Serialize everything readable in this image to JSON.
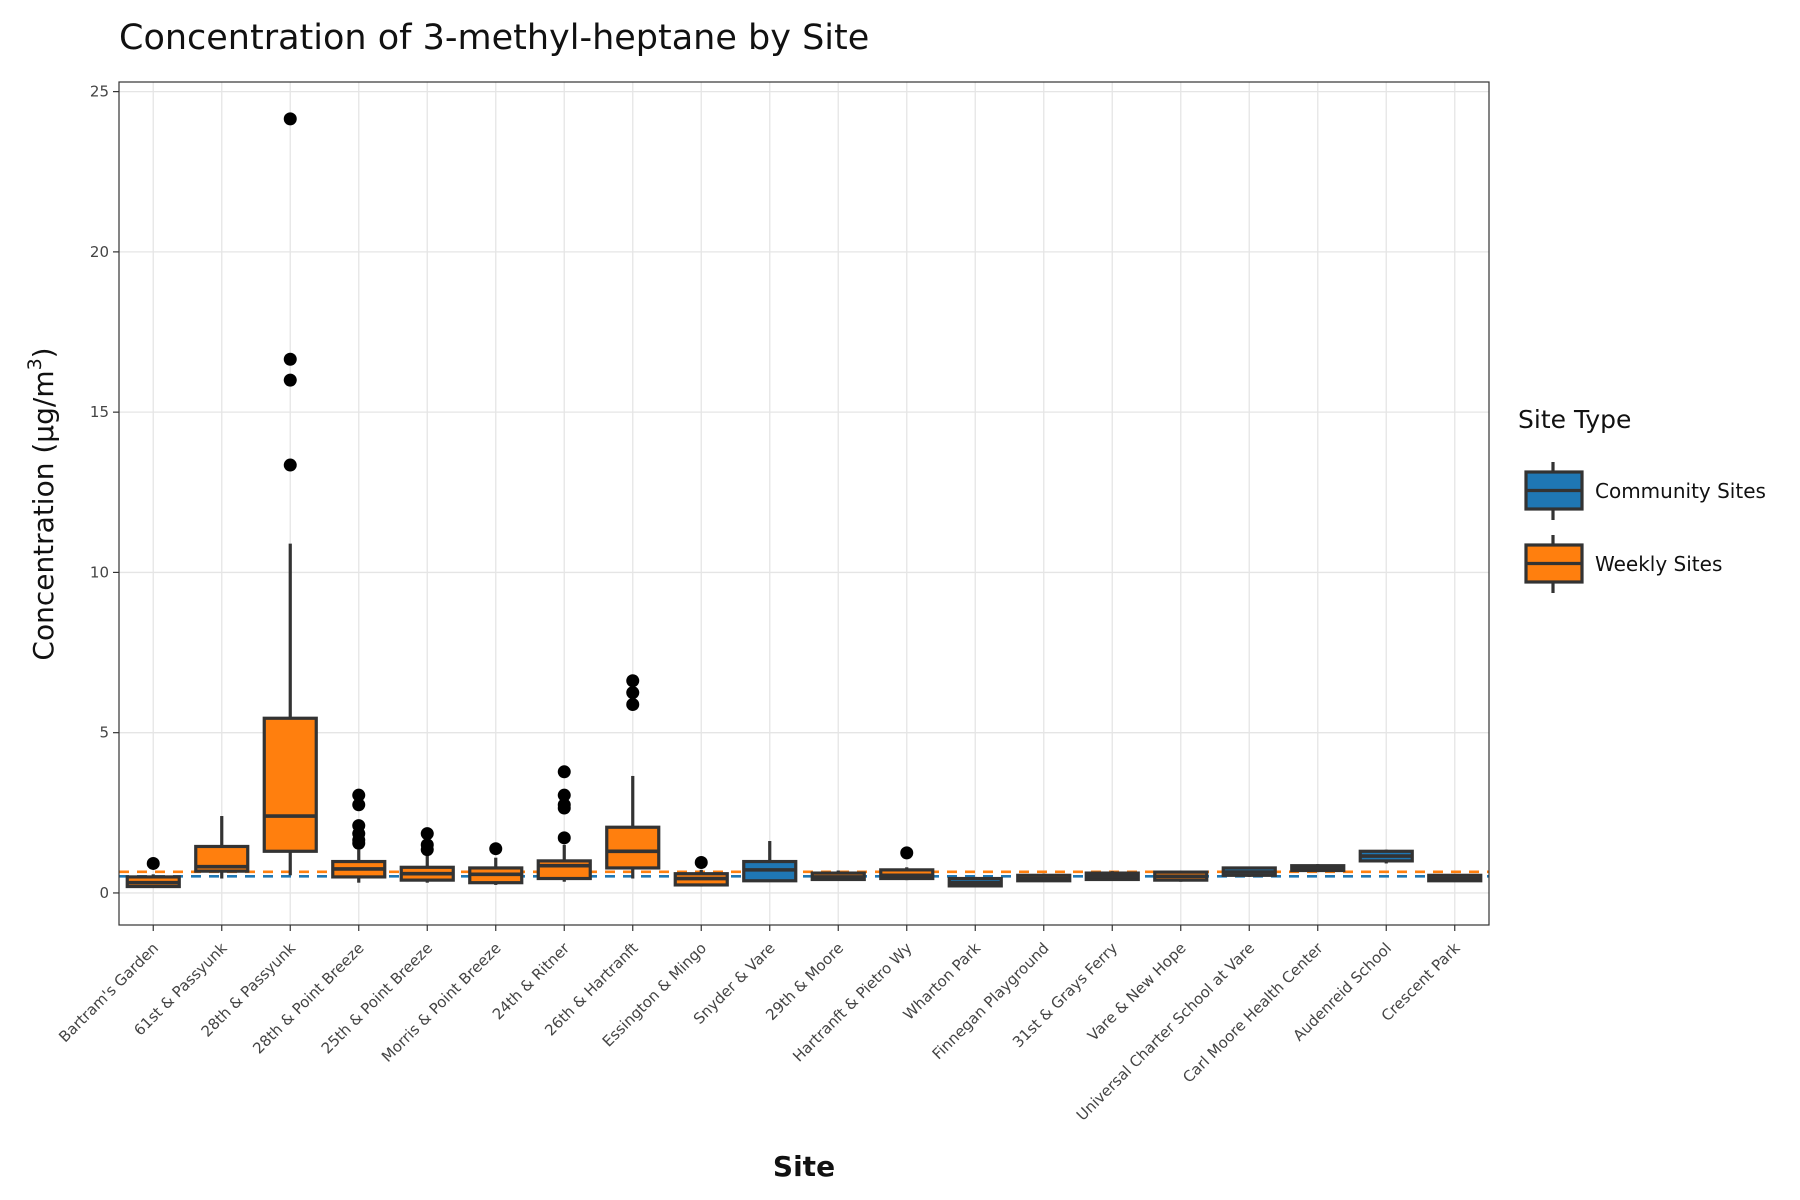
{
  "chart_data": {
    "type": "boxplot",
    "title": "Concentration of 3-methyl-heptane by Site",
    "xlabel": "Site",
    "ylabel": "Concentration (µg/m",
    "ylabel_superscript": "3",
    "ylabel_close": ")",
    "ylim": [
      -1.0,
      25.3
    ],
    "yticks": [
      0,
      5,
      10,
      15,
      20,
      25
    ],
    "grid": true,
    "legend": {
      "title": "Site Type",
      "position": "right",
      "entries": [
        {
          "name": "Community Sites",
          "color": "#1f77b4"
        },
        {
          "name": "Weekly Sites",
          "color": "#ff7f0e"
        }
      ]
    },
    "reference_lines": [
      {
        "group": "Community Sites",
        "value": 0.52,
        "color": "#1f77b4",
        "style": "dashed"
      },
      {
        "group": "Weekly Sites",
        "value": 0.66,
        "color": "#ff7f0e",
        "style": "dashed"
      }
    ],
    "categories": [
      "Bartram's Garden",
      "61st & Passyunk",
      "28th & Passyunk",
      "28th & Point Breeze",
      "25th & Point Breeze",
      "Morris & Point Breeze",
      "24th & Ritner",
      "26th & Hartranft",
      "Essington & Mingo",
      "Snyder & Vare",
      "29th & Moore",
      "Hartranft & Pietro Wy",
      "Wharton Park",
      "Finnegan Playground",
      "31st & Grays Ferry",
      "Vare & New Hope",
      "Universal Charter School at Vare",
      "Carl Moore Health Center",
      "Audenreid School",
      "Crescent Park"
    ],
    "boxes": [
      {
        "site": "Bartram's Garden",
        "group": "Weekly Sites",
        "whisker_low": 0.18,
        "q1": 0.2,
        "median": 0.32,
        "q3": 0.5,
        "whisker_high": 0.58,
        "outliers": [
          0.92
        ]
      },
      {
        "site": "61st & Passyunk",
        "group": "Weekly Sites",
        "whisker_low": 0.45,
        "q1": 0.68,
        "median": 0.82,
        "q3": 1.45,
        "whisker_high": 2.4,
        "outliers": []
      },
      {
        "site": "28th & Passyunk",
        "group": "Weekly Sites",
        "whisker_low": 0.55,
        "q1": 1.3,
        "median": 2.4,
        "q3": 5.45,
        "whisker_high": 10.9,
        "outliers": [
          13.35,
          16.0,
          16.65,
          24.15
        ]
      },
      {
        "site": "28th & Point Breeze",
        "group": "Weekly Sites",
        "whisker_low": 0.32,
        "q1": 0.5,
        "median": 0.75,
        "q3": 0.98,
        "whisker_high": 1.35,
        "outliers": [
          1.55,
          1.65,
          1.85,
          2.1,
          2.75,
          3.05
        ]
      },
      {
        "site": "25th & Point Breeze",
        "group": "Weekly Sites",
        "whisker_low": 0.32,
        "q1": 0.4,
        "median": 0.6,
        "q3": 0.8,
        "whisker_high": 1.2,
        "outliers": [
          1.35,
          1.5,
          1.85
        ]
      },
      {
        "site": "Morris & Point Breeze",
        "group": "Weekly Sites",
        "whisker_low": 0.25,
        "q1": 0.32,
        "median": 0.58,
        "q3": 0.78,
        "whisker_high": 1.1,
        "outliers": [
          1.38
        ]
      },
      {
        "site": "24th & Ritner",
        "group": "Weekly Sites",
        "whisker_low": 0.35,
        "q1": 0.45,
        "median": 0.85,
        "q3": 1.0,
        "whisker_high": 1.5,
        "outliers": [
          1.72,
          2.65,
          2.75,
          3.05,
          3.78
        ]
      },
      {
        "site": "26th & Hartranft",
        "group": "Weekly Sites",
        "whisker_low": 0.45,
        "q1": 0.78,
        "median": 1.3,
        "q3": 2.05,
        "whisker_high": 3.65,
        "outliers": [
          5.88,
          6.25,
          6.62
        ]
      },
      {
        "site": "Essington & Mingo",
        "group": "Weekly Sites",
        "whisker_low": 0.2,
        "q1": 0.25,
        "median": 0.45,
        "q3": 0.6,
        "whisker_high": 0.72,
        "outliers": [
          0.95
        ]
      },
      {
        "site": "Snyder & Vare",
        "group": "Community Sites",
        "whisker_low": 0.35,
        "q1": 0.38,
        "median": 0.72,
        "q3": 0.98,
        "whisker_high": 1.62,
        "outliers": []
      },
      {
        "site": "29th & Moore",
        "group": "Weekly Sites",
        "whisker_low": 0.38,
        "q1": 0.42,
        "median": 0.5,
        "q3": 0.62,
        "whisker_high": 0.7,
        "outliers": []
      },
      {
        "site": "Hartranft & Pietro Wy",
        "group": "Weekly Sites",
        "whisker_low": 0.4,
        "q1": 0.45,
        "median": 0.55,
        "q3": 0.72,
        "whisker_high": 0.8,
        "outliers": [
          1.25
        ]
      },
      {
        "site": "Wharton Park",
        "group": "Community Sites",
        "whisker_low": 0.2,
        "q1": 0.22,
        "median": 0.32,
        "q3": 0.45,
        "whisker_high": 0.5,
        "outliers": []
      },
      {
        "site": "Finnegan Playground",
        "group": "Weekly Sites",
        "whisker_low": 0.35,
        "q1": 0.38,
        "median": 0.45,
        "q3": 0.55,
        "whisker_high": 0.6,
        "outliers": []
      },
      {
        "site": "31st & Grays Ferry",
        "group": "Weekly Sites",
        "whisker_low": 0.38,
        "q1": 0.42,
        "median": 0.52,
        "q3": 0.62,
        "whisker_high": 0.68,
        "outliers": []
      },
      {
        "site": "Vare & New Hope",
        "group": "Weekly Sites",
        "whisker_low": 0.35,
        "q1": 0.4,
        "median": 0.52,
        "q3": 0.65,
        "whisker_high": 0.7,
        "outliers": []
      },
      {
        "site": "Universal Charter School at Vare",
        "group": "Community Sites",
        "whisker_low": 0.5,
        "q1": 0.55,
        "median": 0.65,
        "q3": 0.78,
        "whisker_high": 0.82,
        "outliers": []
      },
      {
        "site": "Carl Moore Health Center",
        "group": "Community Sites",
        "whisker_low": 0.65,
        "q1": 0.7,
        "median": 0.78,
        "q3": 0.85,
        "whisker_high": 0.9,
        "outliers": []
      },
      {
        "site": "Audenreid School",
        "group": "Community Sites",
        "whisker_low": 0.92,
        "q1": 1.0,
        "median": 1.15,
        "q3": 1.3,
        "whisker_high": 1.35,
        "outliers": []
      },
      {
        "site": "Crescent Park",
        "group": "Community Sites",
        "whisker_low": 0.36,
        "q1": 0.38,
        "median": 0.45,
        "q3": 0.55,
        "whisker_high": 0.58,
        "outliers": []
      }
    ]
  }
}
